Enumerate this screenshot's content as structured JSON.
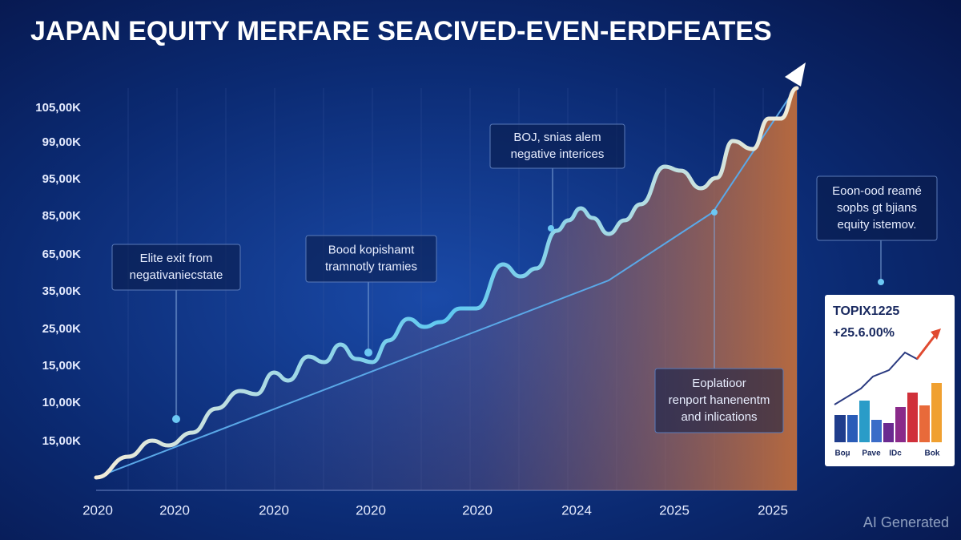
{
  "title": "JAPAN EQUITY MERFARE SEACIVED-EVEN-ERDFEATES",
  "y_axis_labels": [
    "105,00K",
    "99,00K",
    "95,00K",
    "85,00K",
    "65,00K",
    "35,00K",
    "25,00K",
    "15,00K",
    "10,00K",
    "15,00K"
  ],
  "x_axis_labels": [
    "2020",
    "2020",
    "2020",
    "2020",
    "2020",
    "2024",
    "2025",
    "2025"
  ],
  "annotations": [
    {
      "lines": [
        "Elite exit from",
        "negativaniecstate"
      ]
    },
    {
      "lines": [
        "Bood kopishamt",
        "tramnotly tramies"
      ]
    },
    {
      "lines": [
        "BOJ, snias alem",
        "negative interices"
      ]
    },
    {
      "lines": [
        "Eoon-ood reamé",
        "sopbs gt bjians",
        "equity istemov."
      ]
    },
    {
      "lines": [
        "Eoplatioor",
        "renport hanenentm",
        "and inlications"
      ]
    }
  ],
  "inset": {
    "title": "TOPIX1225",
    "change": "+25.6.00%",
    "labels": [
      "Boµ",
      "Pave",
      "IDc",
      "Bok"
    ]
  },
  "watermark": "AI Generated"
}
